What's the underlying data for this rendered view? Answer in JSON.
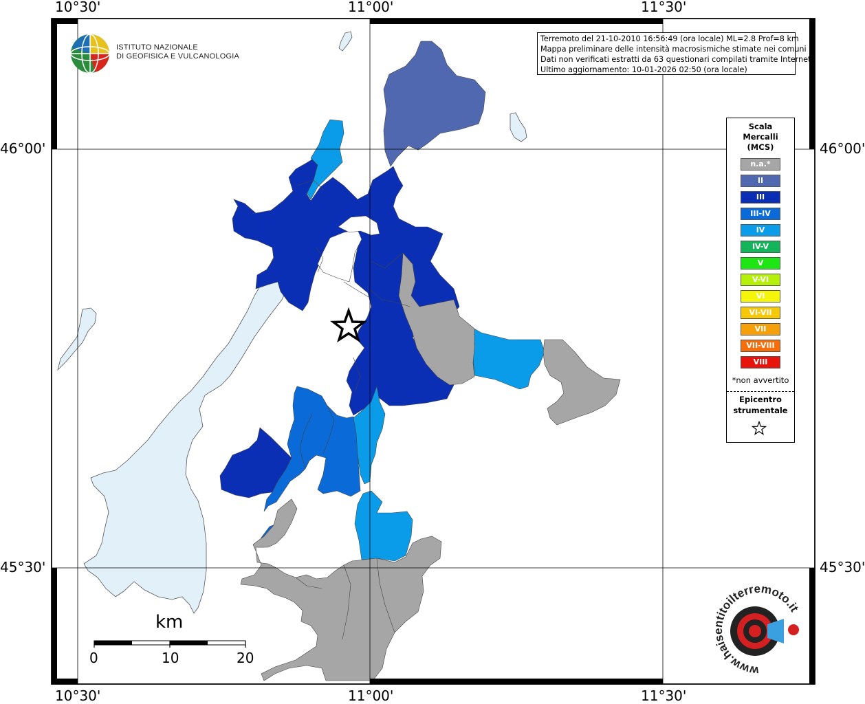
{
  "axes": {
    "lon_labels": [
      "10°30'",
      "11°00'",
      "11°30'"
    ],
    "lat_labels": [
      "46°00'",
      "45°30'"
    ]
  },
  "info": {
    "line1": "Terremoto del 21-10-2010 16:56:49 (ora locale) ML=2.8 Prof=8 km",
    "line2": "Mappa preliminare delle intensità macrosismiche stimate nei comuni",
    "line3": "Dati non verificati estratti da 63 questionari compilati tramite Internet.",
    "line4": "Ultimo aggiornamento: 10-01-2026 02:50 (ora locale)"
  },
  "ingv": {
    "line1": "ISTITUTO NAZIONALE",
    "line2": "DI GEOFISICA E VULCANOLOGIA"
  },
  "legend": {
    "title1": "Scala",
    "title2": "Mercalli",
    "title3": "(MCS)",
    "items": [
      {
        "label": "n.a.*",
        "color": "#a6a6a6"
      },
      {
        "label": "II",
        "color": "#5068b0"
      },
      {
        "label": "III",
        "color": "#0a2fb5"
      },
      {
        "label": "III-IV",
        "color": "#0a6ad8"
      },
      {
        "label": "IV",
        "color": "#0a9ce8"
      },
      {
        "label": "IV-V",
        "color": "#13b45a"
      },
      {
        "label": "V",
        "color": "#1ee614"
      },
      {
        "label": "V-VI",
        "color": "#b4f00a"
      },
      {
        "label": "VI",
        "color": "#f5f50a"
      },
      {
        "label": "VI-VII",
        "color": "#f5c80a"
      },
      {
        "label": "VII",
        "color": "#f5a00a"
      },
      {
        "label": "VII-VIII",
        "color": "#f56e0a"
      },
      {
        "label": "VIII",
        "color": "#e6140a"
      }
    ],
    "note": "*non avvertito",
    "epicenter1": "Epicentro",
    "epicenter2": "strumentale"
  },
  "scale_bar": {
    "unit": "km",
    "ticks": [
      "0",
      "10",
      "20"
    ]
  },
  "watermark": {
    "text": "www.haisentitoilterremoto.it"
  },
  "colors": {
    "lake": "#e2f0fa",
    "na": "#a6a6a6",
    "ii": "#5068b0",
    "iii": "#0a2fb5",
    "iii_iv": "#0a6ad8",
    "iv": "#0a9ce8"
  }
}
